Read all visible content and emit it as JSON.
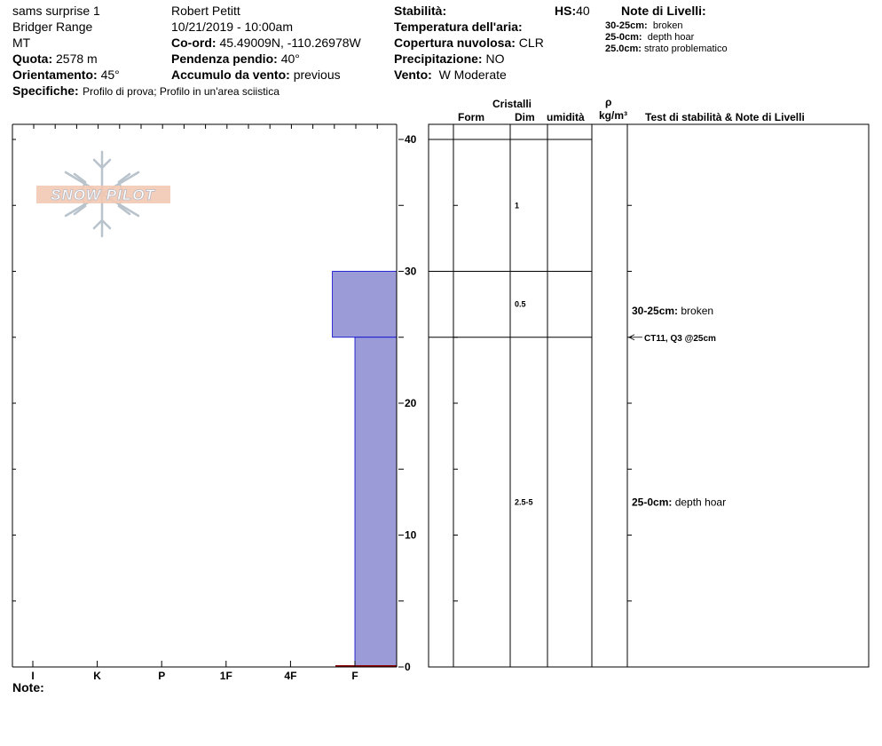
{
  "header": {
    "location_name": "sams surprise 1",
    "range": "Bridger Range",
    "state": "MT",
    "elevation_label": "Quota:",
    "elevation_value": "2578 m",
    "aspect_label": "Orientamento:",
    "aspect_value": "45°",
    "observer": "Robert Petitt",
    "datetime": "10/21/2019 - 10:00am",
    "coord_label": "Co-ord:",
    "coord_value": "45.49009N, -110.26978W",
    "slope_label": "Pendenza pendio:",
    "slope_value": "40°",
    "wind_loading_label": "Accumulo da vento:",
    "wind_loading_value": "previous",
    "stability_label": "Stabilità:",
    "air_temp_label": "Temperatura dell'aria:",
    "sky_label": "Copertura nuvolosa:",
    "sky_value": "CLR",
    "precip_label": "Precipitazione:",
    "precip_value": "NO",
    "wind_label": "Vento:",
    "wind_value": "W Moderate",
    "hs_label": "HS:",
    "hs_value": "40",
    "specifics_label": "Specifiche:",
    "specifics_value": "Profilo di prova;  Profilo in un'area sciistica",
    "layer_notes_title": "Note di Livelli:",
    "layer_notes": [
      {
        "range": "30-25cm:",
        "text": "broken"
      },
      {
        "range": "25-0cm:",
        "text": "depth hoar"
      },
      {
        "range": "25.0cm:",
        "text": "strato problematico"
      }
    ]
  },
  "logo": {
    "text": "SNOW PILOT"
  },
  "colors": {
    "hardness_fill": "#9b9bd7",
    "hardness_edge": "#0000cc",
    "ground": "#8b0000"
  },
  "table": {
    "crystals_header": "Cristalli",
    "form_header": "Form",
    "dim_header": "Dim",
    "moisture_header": "umidità",
    "density_symbol": "ρ",
    "density_unit": "kg/m³",
    "tests_header": "Test di stabilità & Note di Livelli"
  },
  "chart_data": {
    "type": "bar",
    "title": "",
    "y_range": [
      0,
      40
    ],
    "y_ticks": [
      0,
      10,
      20,
      30,
      40
    ],
    "hardness_scale": [
      "I",
      "K",
      "P",
      "1F",
      "4F",
      "F"
    ],
    "layers": [
      {
        "top": 40,
        "bottom": 30,
        "hardness_index": 6.65
      },
      {
        "top": 30,
        "bottom": 25,
        "hardness_index": 5.65
      },
      {
        "top": 25,
        "bottom": 0,
        "hardness_index": 6.0
      }
    ],
    "layer_boundaries": [
      40,
      30,
      25
    ],
    "grain_sizes": [
      {
        "depth": 35,
        "text": "1"
      },
      {
        "depth": 27.5,
        "text": "0.5"
      },
      {
        "depth": 12.5,
        "text": "2.5-5"
      }
    ],
    "layer_notes": [
      {
        "depth": 27,
        "range": "30-25cm:",
        "text": "broken"
      },
      {
        "depth": 12.5,
        "range": "25-0cm:",
        "text": "depth hoar"
      }
    ],
    "stability_tests": [
      {
        "depth": 25,
        "text": "CT11, Q3 @25cm"
      }
    ]
  },
  "notes_label": "Note:"
}
